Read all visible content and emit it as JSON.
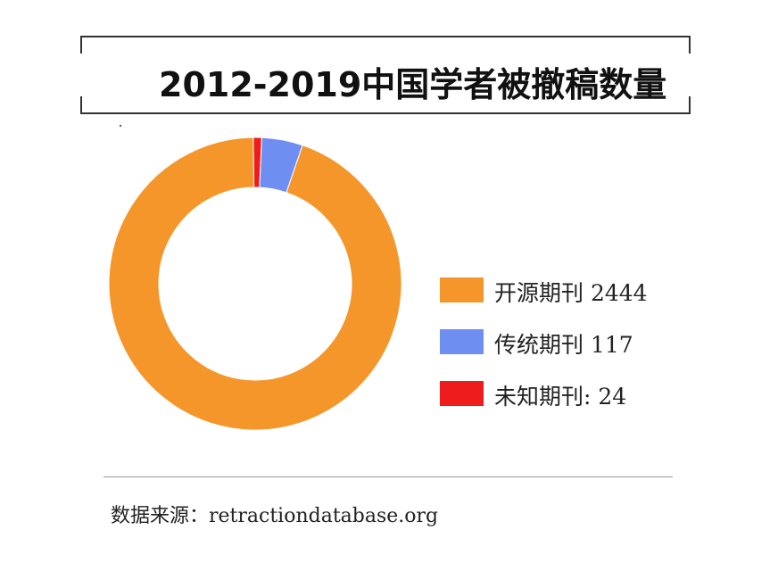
{
  "title": "2012-2019中国学者被撤稿数量",
  "source": "数据来源：retractiondatabase.org",
  "chart_data": {
    "type": "pie",
    "variant": "donut",
    "title": "2012-2019中国学者被撤稿数量",
    "legend_position": "right",
    "slices": [
      {
        "label": "开源期刊 2444",
        "category": "开源期刊",
        "value": 2444,
        "color": "#F5962B"
      },
      {
        "label": "传统期刊 117",
        "category": "传统期刊",
        "value": 117,
        "color": "#6E8EF2"
      },
      {
        "label": "未知期刊: 24",
        "category": "未知期刊",
        "value": 24,
        "color": "#EE1C1C"
      }
    ]
  }
}
